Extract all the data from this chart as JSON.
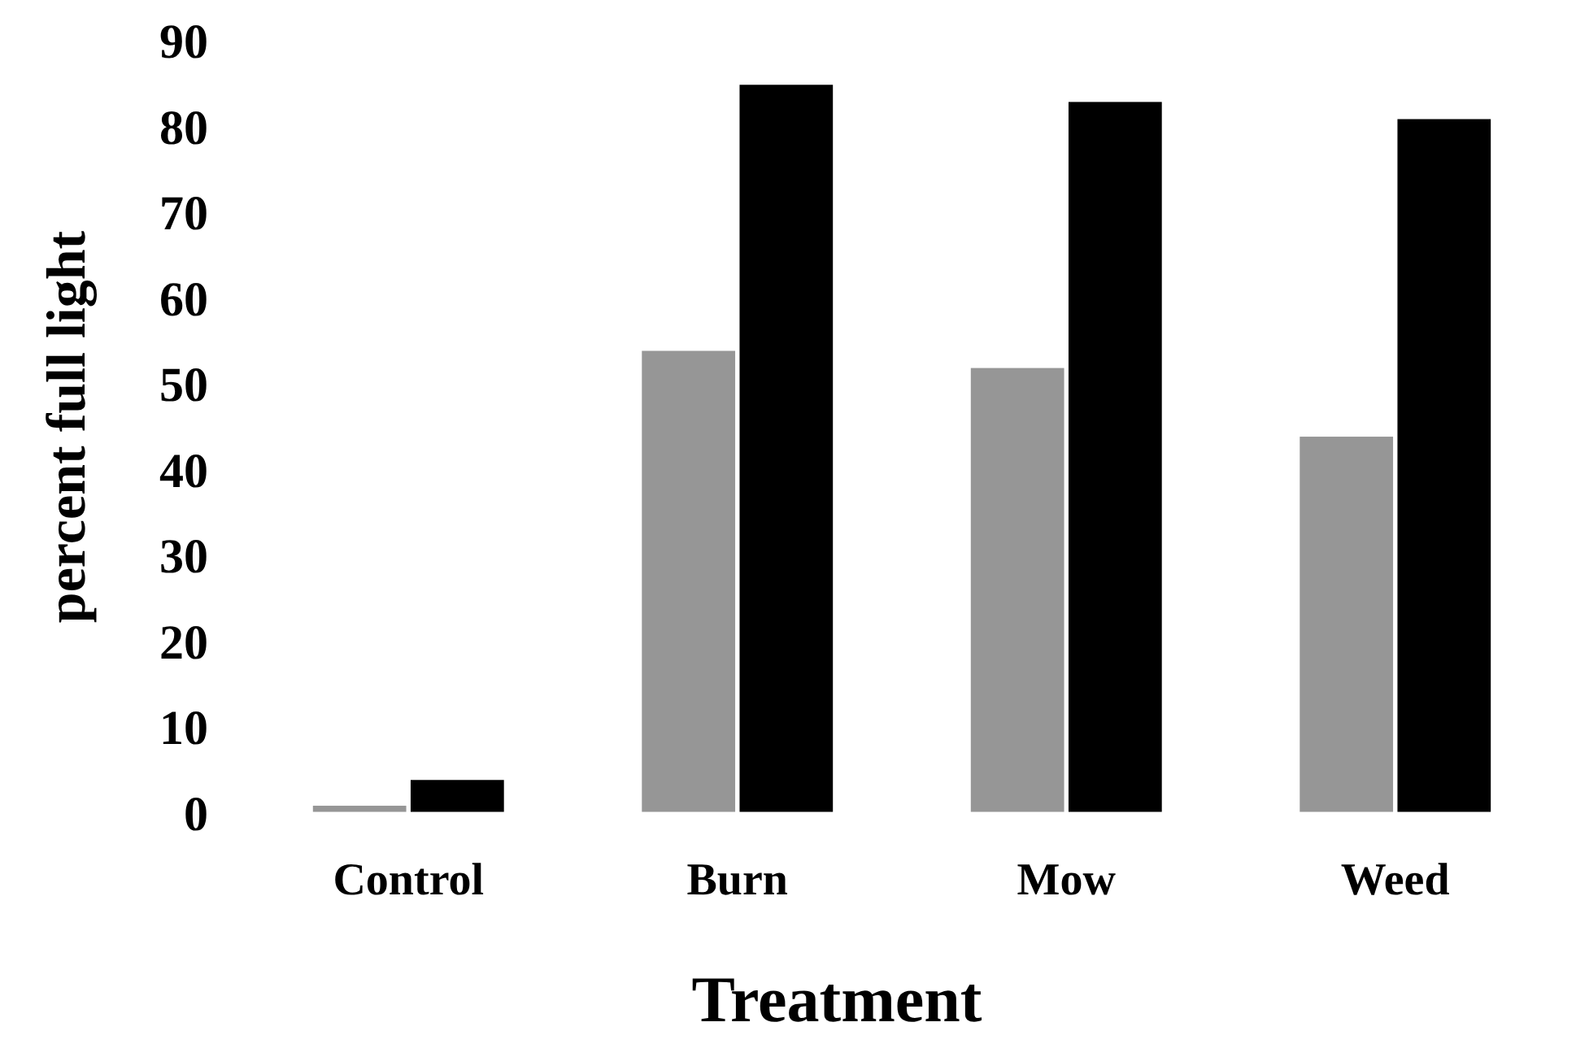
{
  "chart_data": {
    "type": "bar",
    "xlabel": "Treatment",
    "ylabel": "percent full light",
    "categories": [
      "Control",
      "Burn",
      "Mow",
      "Weed"
    ],
    "series": [
      {
        "color": "#969696",
        "values": [
          1,
          54,
          52,
          44
        ]
      },
      {
        "color": "#000000",
        "values": [
          4,
          85,
          83,
          81
        ]
      }
    ],
    "ylim": [
      0,
      90
    ],
    "yticks": [
      0,
      10,
      20,
      30,
      40,
      50,
      60,
      70,
      80,
      90
    ],
    "grid": false
  }
}
